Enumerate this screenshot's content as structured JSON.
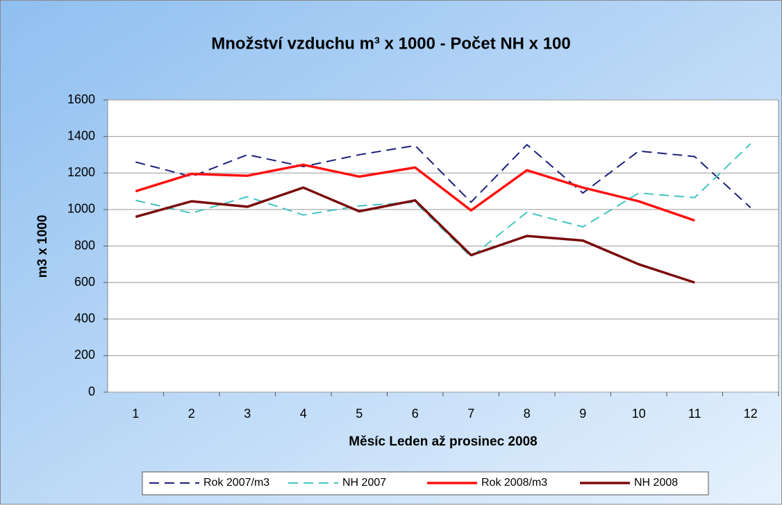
{
  "chart_data": {
    "type": "line",
    "title": "Množství vzduchu m³ x 1000 - Počet NH x 100",
    "x_label": "Měsíc Leden až prosinec 2008",
    "y_label": "m3 x 1000",
    "categories": [
      1,
      2,
      3,
      4,
      5,
      6,
      7,
      8,
      9,
      10,
      11,
      12
    ],
    "series": [
      {
        "name": "Rok 2007/m3",
        "color": "#1a1f7a",
        "dash": true,
        "values": [
          1260,
          1180,
          1300,
          1235,
          1300,
          1350,
          1040,
          1355,
          1090,
          1320,
          1290,
          1010
        ]
      },
      {
        "name": "NH 2007",
        "color": "#40c4c0",
        "dash": true,
        "values": [
          1050,
          980,
          1070,
          970,
          1020,
          1040,
          740,
          985,
          905,
          1090,
          1065,
          1360
        ]
      },
      {
        "name": "Rok 2008/m3",
        "color": "#ff1010",
        "dash": false,
        "values": [
          1100,
          1195,
          1185,
          1245,
          1180,
          1230,
          995,
          1215,
          1120,
          1045,
          940,
          null
        ]
      },
      {
        "name": "NH 2008",
        "color": "#7a0a0a",
        "dash": false,
        "values": [
          960,
          1045,
          1015,
          1120,
          990,
          1050,
          750,
          855,
          830,
          700,
          600,
          null
        ]
      }
    ],
    "ylim": [
      0,
      1600
    ],
    "yticks": [
      0,
      200,
      400,
      600,
      800,
      1000,
      1200,
      1400,
      1600
    ],
    "grid": true,
    "legend": "bottom"
  }
}
